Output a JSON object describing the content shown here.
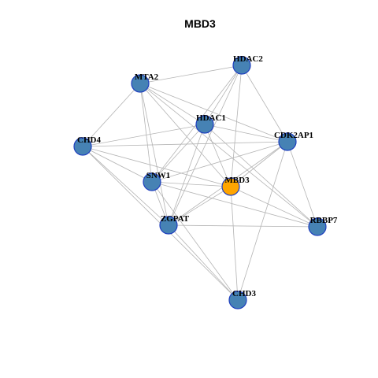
{
  "title": "MBD3",
  "colors": {
    "background": "#ffffff",
    "edge": "#b4b4b4",
    "node_fill": "#4682b4",
    "node_stroke": "#1f3fbf",
    "focus_fill": "#ffa500",
    "label": "#000000"
  },
  "focus_node": "MBD3",
  "nodes": [
    "HDAC2",
    "MTA2",
    "HDAC1",
    "CDK2AP1",
    "CHD4",
    "SNW1",
    "MBD3",
    "ZGPAT",
    "RBBP7",
    "CHD3"
  ],
  "edges": [
    [
      "MTA2",
      "HDAC2"
    ],
    [
      "MTA2",
      "CHD4"
    ],
    [
      "MTA2",
      "HDAC1"
    ],
    [
      "MTA2",
      "CDK2AP1"
    ],
    [
      "MTA2",
      "SNW1"
    ],
    [
      "MTA2",
      "ZGPAT"
    ],
    [
      "MTA2",
      "MBD3"
    ],
    [
      "MTA2",
      "RBBP7"
    ],
    [
      "HDAC2",
      "HDAC1"
    ],
    [
      "HDAC2",
      "CDK2AP1"
    ],
    [
      "HDAC2",
      "MBD3"
    ],
    [
      "HDAC2",
      "SNW1"
    ],
    [
      "HDAC2",
      "ZGPAT"
    ],
    [
      "HDAC1",
      "CHD4"
    ],
    [
      "HDAC1",
      "CDK2AP1"
    ],
    [
      "HDAC1",
      "SNW1"
    ],
    [
      "HDAC1",
      "MBD3"
    ],
    [
      "HDAC1",
      "ZGPAT"
    ],
    [
      "HDAC1",
      "RBBP7"
    ],
    [
      "CHD4",
      "CDK2AP1"
    ],
    [
      "CHD4",
      "SNW1"
    ],
    [
      "CHD4",
      "MBD3"
    ],
    [
      "CHD4",
      "ZGPAT"
    ],
    [
      "CHD4",
      "CHD3"
    ],
    [
      "CDK2AP1",
      "SNW1"
    ],
    [
      "CDK2AP1",
      "MBD3"
    ],
    [
      "CDK2AP1",
      "ZGPAT"
    ],
    [
      "CDK2AP1",
      "RBBP7"
    ],
    [
      "CDK2AP1",
      "CHD3"
    ],
    [
      "SNW1",
      "MBD3"
    ],
    [
      "SNW1",
      "ZGPAT"
    ],
    [
      "SNW1",
      "RBBP7"
    ],
    [
      "SNW1",
      "CHD3"
    ],
    [
      "MBD3",
      "ZGPAT"
    ],
    [
      "MBD3",
      "RBBP7"
    ],
    [
      "MBD3",
      "CHD3"
    ],
    [
      "ZGPAT",
      "RBBP7"
    ],
    [
      "ZGPAT",
      "CHD3"
    ]
  ]
}
